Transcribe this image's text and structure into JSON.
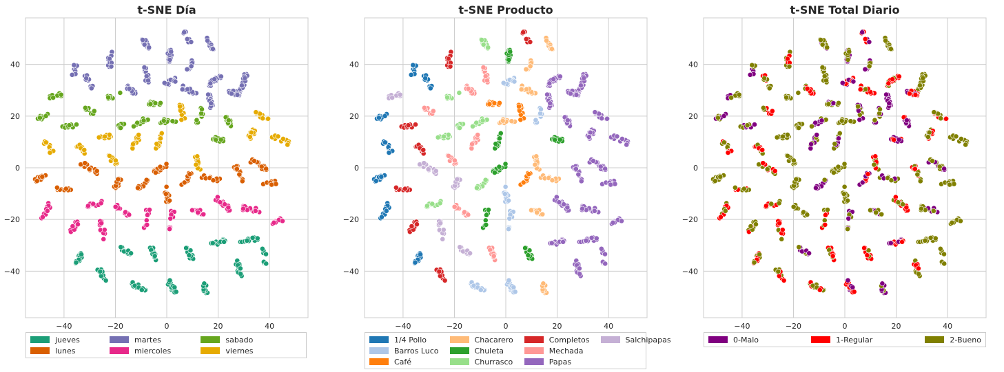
{
  "chart_data": [
    {
      "type": "scatter",
      "title": "t-SNE Día",
      "xlim": [
        -55,
        55
      ],
      "ylim": [
        -58,
        58
      ],
      "xticks": [
        -40,
        -20,
        0,
        20,
        40
      ],
      "yticks": [
        -40,
        -20,
        0,
        20,
        40
      ],
      "tick_labels_x": [
        "−40",
        "−20",
        "0",
        "20",
        "40"
      ],
      "tick_labels_y": [
        "−40",
        "−20",
        "0",
        "20",
        "40"
      ],
      "grid": true,
      "legend": "below",
      "series": [
        {
          "name": "jueves",
          "color": "#1b9e77"
        },
        {
          "name": "lunes",
          "color": "#d95f02"
        },
        {
          "name": "martes",
          "color": "#7570b3"
        },
        {
          "name": "miercoles",
          "color": "#e7298a"
        },
        {
          "name": "sabado",
          "color": "#66a61e"
        },
        {
          "name": "viernes",
          "color": "#e6ab02"
        }
      ]
    },
    {
      "type": "scatter",
      "title": "t-SNE Producto",
      "xlim": [
        -55,
        55
      ],
      "ylim": [
        -58,
        58
      ],
      "xticks": [
        -40,
        -20,
        0,
        20,
        40
      ],
      "yticks": [
        -40,
        -20,
        0,
        20,
        40
      ],
      "tick_labels_x": [
        "−40",
        "−20",
        "0",
        "20",
        "40"
      ],
      "tick_labels_y": [
        "−40",
        "−20",
        "0",
        "20",
        "40"
      ],
      "grid": true,
      "legend": "below",
      "series": [
        {
          "name": "1/4 Pollo",
          "color": "#1f77b4"
        },
        {
          "name": "Barros Luco",
          "color": "#aec7e8"
        },
        {
          "name": "Café",
          "color": "#ff7f0e"
        },
        {
          "name": "Chacarero",
          "color": "#ffbb78"
        },
        {
          "name": "Chuleta",
          "color": "#2ca02c"
        },
        {
          "name": "Churrasco",
          "color": "#98df8a"
        },
        {
          "name": "Completos",
          "color": "#d62728"
        },
        {
          "name": "Mechada",
          "color": "#ff9896"
        },
        {
          "name": "Papas",
          "color": "#9467bd"
        },
        {
          "name": "Salchipapas",
          "color": "#c5b0d5"
        }
      ]
    },
    {
      "type": "scatter",
      "title": "t-SNE Total Diario",
      "xlim": [
        -55,
        55
      ],
      "ylim": [
        -58,
        58
      ],
      "xticks": [
        -40,
        -20,
        0,
        20,
        40
      ],
      "yticks": [
        -40,
        -20,
        0,
        20,
        40
      ],
      "tick_labels_x": [
        "−40",
        "−20",
        "0",
        "20",
        "40"
      ],
      "tick_labels_y": [
        "−40",
        "−20",
        "0",
        "20",
        "40"
      ],
      "grid": true,
      "legend": "below",
      "series": [
        {
          "name": "0-Malo",
          "color": "#800080"
        },
        {
          "name": "1-Regular",
          "color": "#ff0000"
        },
        {
          "name": "2-Bueno",
          "color": "#808000"
        }
      ]
    }
  ],
  "clusters": [
    {
      "cx": -8,
      "cy": 48,
      "n": 14,
      "day": "martes",
      "prod": "Churrasco",
      "total": [
        "2-Bueno",
        "0-Malo"
      ]
    },
    {
      "cx": 1,
      "cy": 44,
      "n": 14,
      "day": "martes",
      "prod": "Chuleta",
      "total": [
        "0-Malo",
        "2-Bueno"
      ]
    },
    {
      "cx": 8,
      "cy": 51,
      "n": 10,
      "day": "martes",
      "prod": "Completos",
      "total": [
        "1-Regular",
        "0-Malo"
      ]
    },
    {
      "cx": 17,
      "cy": 47,
      "n": 10,
      "day": "martes",
      "prod": "Chacarero",
      "total": [
        "2-Bueno"
      ]
    },
    {
      "cx": -22,
      "cy": 42,
      "n": 14,
      "day": "martes",
      "prod": "Completos",
      "total": [
        "2-Bueno",
        "1-Regular"
      ]
    },
    {
      "cx": -36,
      "cy": 37,
      "n": 10,
      "day": "martes",
      "prod": "1/4 Pollo",
      "total": [
        "2-Bueno",
        "0-Malo"
      ]
    },
    {
      "cx": -30,
      "cy": 33,
      "n": 10,
      "day": "martes",
      "prod": "1/4 Pollo",
      "total": [
        "1-Regular",
        "2-Bueno"
      ]
    },
    {
      "cx": -14,
      "cy": 30,
      "n": 14,
      "day": "martes",
      "prod": "Mechada",
      "total": [
        "2-Bueno",
        "1-Regular"
      ]
    },
    {
      "cx": -8,
      "cy": 36,
      "n": 14,
      "day": "martes",
      "prod": "Mechada",
      "total": [
        "2-Bueno"
      ]
    },
    {
      "cx": 9,
      "cy": 40,
      "n": 10,
      "day": "martes",
      "prod": "Chacarero",
      "total": [
        "2-Bueno",
        "0-Malo"
      ]
    },
    {
      "cx": 19,
      "cy": 34,
      "n": 16,
      "day": "martes",
      "prod": "Papas",
      "total": [
        "1-Regular",
        "2-Bueno"
      ]
    },
    {
      "cx": 30,
      "cy": 33,
      "n": 18,
      "day": "martes",
      "prod": "Papas",
      "total": [
        "2-Bueno"
      ]
    },
    {
      "cx": 26,
      "cy": 29,
      "n": 18,
      "day": "martes",
      "prod": "Papas",
      "total": [
        "1-Regular",
        "0-Malo"
      ]
    },
    {
      "cx": 17,
      "cy": 26,
      "n": 14,
      "day": "martes",
      "prod": "Papas",
      "total": [
        "0-Malo"
      ]
    },
    {
      "cx": 9,
      "cy": 30,
      "n": 12,
      "day": "martes",
      "prod": "Chacarero",
      "total": [
        "2-Bueno",
        "1-Regular"
      ]
    },
    {
      "cx": 1,
      "cy": 33,
      "n": 12,
      "day": "martes",
      "prod": "Barros Luco",
      "total": [
        "1-Regular",
        "0-Malo"
      ]
    },
    {
      "cx": 6,
      "cy": 22,
      "n": 12,
      "day": "viernes",
      "prod": "Café",
      "total": [
        "2-Bueno",
        "0-Malo"
      ]
    },
    {
      "cx": -5,
      "cy": 25,
      "n": 12,
      "day": "sabado",
      "prod": "Café",
      "total": [
        "0-Malo",
        "2-Bueno"
      ]
    },
    {
      "cx": -20,
      "cy": 28,
      "n": 8,
      "day": "sabado",
      "prod": "Churrasco",
      "total": [
        "2-Bueno"
      ]
    },
    {
      "cx": -43,
      "cy": 28,
      "n": 10,
      "day": "sabado",
      "prod": "Salchipapas",
      "total": [
        "0-Malo",
        "2-Bueno"
      ]
    },
    {
      "cx": -48,
      "cy": 20,
      "n": 12,
      "day": "sabado",
      "prod": "1/4 Pollo",
      "total": [
        "2-Bueno",
        "0-Malo"
      ]
    },
    {
      "cx": -30,
      "cy": 22,
      "n": 10,
      "day": "sabado",
      "prod": "Mechada",
      "total": [
        "2-Bueno",
        "1-Regular"
      ]
    },
    {
      "cx": -10,
      "cy": 18,
      "n": 10,
      "day": "sabado",
      "prod": "Churrasco",
      "total": [
        "0-Malo",
        "2-Bueno"
      ]
    },
    {
      "cx": 1,
      "cy": 18,
      "n": 10,
      "day": "sabado",
      "prod": "Chacarero",
      "total": [
        "2-Bueno"
      ]
    },
    {
      "cx": 13,
      "cy": 20,
      "n": 12,
      "day": "sabado",
      "prod": "Barros Luco",
      "total": [
        "2-Bueno",
        "0-Malo"
      ]
    },
    {
      "cx": 24,
      "cy": 18,
      "n": 12,
      "day": "sabado",
      "prod": "Papas",
      "total": [
        "1-Regular",
        "0-Malo"
      ]
    },
    {
      "cx": 37,
      "cy": 20,
      "n": 14,
      "day": "viernes",
      "prod": "Papas",
      "total": [
        "2-Bueno",
        "1-Regular"
      ]
    },
    {
      "cx": -38,
      "cy": 16,
      "n": 12,
      "day": "sabado",
      "prod": "Completos",
      "total": [
        "2-Bueno",
        "0-Malo"
      ]
    },
    {
      "cx": -18,
      "cy": 16,
      "n": 10,
      "day": "sabado",
      "prod": "Churrasco",
      "total": [
        "2-Bueno"
      ]
    },
    {
      "cx": 20,
      "cy": 11,
      "n": 16,
      "day": "sabado",
      "prod": "Chuleta",
      "total": [
        "1-Regular",
        "0-Malo"
      ]
    },
    {
      "cx": 33,
      "cy": 13,
      "n": 16,
      "day": "viernes",
      "prod": "Papas",
      "total": [
        "2-Bueno",
        "1-Regular"
      ]
    },
    {
      "cx": 44,
      "cy": 11,
      "n": 14,
      "day": "viernes",
      "prod": "Papas",
      "total": [
        "2-Bueno"
      ]
    },
    {
      "cx": -46,
      "cy": 8,
      "n": 12,
      "day": "viernes",
      "prod": "1/4 Pollo",
      "total": [
        "2-Bueno",
        "1-Regular"
      ]
    },
    {
      "cx": -33,
      "cy": 7,
      "n": 14,
      "day": "viernes",
      "prod": "Completos",
      "total": [
        "2-Bueno",
        "1-Regular"
      ]
    },
    {
      "cx": -24,
      "cy": 12,
      "n": 12,
      "day": "viernes",
      "prod": "Churrasco",
      "total": [
        "2-Bueno"
      ]
    },
    {
      "cx": -12,
      "cy": 10,
      "n": 12,
      "day": "viernes",
      "prod": "Mechada",
      "total": [
        "2-Bueno",
        "0-Malo"
      ]
    },
    {
      "cx": -3,
      "cy": 10,
      "n": 10,
      "day": "viernes",
      "prod": "Chuleta",
      "total": [
        "0-Malo",
        "2-Bueno"
      ]
    },
    {
      "cx": 12,
      "cy": 2,
      "n": 12,
      "day": "viernes",
      "prod": "Chacarero",
      "total": [
        "2-Bueno",
        "1-Regular"
      ]
    },
    {
      "cx": -21,
      "cy": 3,
      "n": 12,
      "day": "viernes",
      "prod": "Mechada",
      "total": [
        "2-Bueno"
      ]
    },
    {
      "cx": -2,
      "cy": 0,
      "n": 14,
      "day": "lunes",
      "prod": "Chuleta",
      "total": [
        "2-Bueno"
      ]
    },
    {
      "cx": -49,
      "cy": -4,
      "n": 12,
      "day": "lunes",
      "prod": "1/4 Pollo",
      "total": [
        "2-Bueno"
      ]
    },
    {
      "cx": -30,
      "cy": 0,
      "n": 14,
      "day": "lunes",
      "prod": "Salchipapas",
      "total": [
        "2-Bueno",
        "1-Regular"
      ]
    },
    {
      "cx": -19,
      "cy": -6,
      "n": 12,
      "day": "lunes",
      "prod": "Salchipapas",
      "total": [
        "2-Bueno"
      ]
    },
    {
      "cx": -9,
      "cy": -6,
      "n": 12,
      "day": "lunes",
      "prod": "Churrasco",
      "total": [
        "2-Bueno",
        "0-Malo"
      ]
    },
    {
      "cx": 0,
      "cy": -10,
      "n": 10,
      "day": "lunes",
      "prod": "Barros Luco",
      "total": [
        "2-Bueno"
      ]
    },
    {
      "cx": 8,
      "cy": -4,
      "n": 12,
      "day": "lunes",
      "prod": "Café",
      "total": [
        "1-Regular",
        "0-Malo"
      ]
    },
    {
      "cx": 17,
      "cy": -4,
      "n": 12,
      "day": "lunes",
      "prod": "Chacarero",
      "total": [
        "0-Malo",
        "2-Bueno"
      ]
    },
    {
      "cx": 28,
      "cy": -2,
      "n": 18,
      "day": "lunes",
      "prod": "Papas",
      "total": [
        "2-Bueno",
        "1-Regular"
      ]
    },
    {
      "cx": 36,
      "cy": 1,
      "n": 16,
      "day": "lunes",
      "prod": "Papas",
      "total": [
        "2-Bueno",
        "0-Malo"
      ]
    },
    {
      "cx": 40,
      "cy": -6,
      "n": 14,
      "day": "lunes",
      "prod": "Papas",
      "total": [
        "2-Bueno"
      ]
    },
    {
      "cx": -40,
      "cy": -8,
      "n": 12,
      "day": "lunes",
      "prod": "Completos",
      "total": [
        "2-Bueno",
        "1-Regular"
      ]
    },
    {
      "cx": -47,
      "cy": -17,
      "n": 12,
      "day": "miercoles",
      "prod": "1/4 Pollo",
      "total": [
        "2-Bueno",
        "1-Regular"
      ]
    },
    {
      "cx": -28,
      "cy": -14,
      "n": 12,
      "day": "miercoles",
      "prod": "Churrasco",
      "total": [
        "1-Regular",
        "2-Bueno"
      ]
    },
    {
      "cx": -18,
      "cy": -16,
      "n": 12,
      "day": "miercoles",
      "prod": "Mechada",
      "total": [
        "2-Bueno"
      ]
    },
    {
      "cx": -8,
      "cy": -20,
      "n": 12,
      "day": "miercoles",
      "prod": "Chuleta",
      "total": [
        "2-Bueno",
        "1-Regular"
      ]
    },
    {
      "cx": 2,
      "cy": -20,
      "n": 10,
      "day": "miercoles",
      "prod": "Barros Luco",
      "total": [
        "0-Malo",
        "2-Bueno"
      ]
    },
    {
      "cx": 12,
      "cy": -17,
      "n": 12,
      "day": "miercoles",
      "prod": "Chacarero",
      "total": [
        "2-Bueno",
        "0-Malo"
      ]
    },
    {
      "cx": 22,
      "cy": -14,
      "n": 16,
      "day": "miercoles",
      "prod": "Papas",
      "total": [
        "1-Regular",
        "2-Bueno"
      ]
    },
    {
      "cx": 33,
      "cy": -16,
      "n": 16,
      "day": "miercoles",
      "prod": "Papas",
      "total": [
        "2-Bueno",
        "0-Malo"
      ]
    },
    {
      "cx": 43,
      "cy": -21,
      "n": 10,
      "day": "miercoles",
      "prod": "Papas",
      "total": [
        "2-Bueno"
      ]
    },
    {
      "cx": -36,
      "cy": -23,
      "n": 12,
      "day": "miercoles",
      "prod": "Completos",
      "total": [
        "2-Bueno",
        "1-Regular"
      ]
    },
    {
      "cx": -25,
      "cy": -24,
      "n": 12,
      "day": "miercoles",
      "prod": "Salchipapas",
      "total": [
        "2-Bueno",
        "1-Regular"
      ]
    },
    {
      "cx": -16,
      "cy": -32,
      "n": 12,
      "day": "jueves",
      "prod": "Salchipapas",
      "total": [
        "0-Malo",
        "2-Bueno"
      ]
    },
    {
      "cx": -34,
      "cy": -35,
      "n": 12,
      "day": "jueves",
      "prod": "1/4 Pollo",
      "total": [
        "1-Regular",
        "2-Bueno"
      ]
    },
    {
      "cx": -25,
      "cy": -42,
      "n": 12,
      "day": "jueves",
      "prod": "Completos",
      "total": [
        "2-Bueno",
        "1-Regular"
      ]
    },
    {
      "cx": -11,
      "cy": -46,
      "n": 12,
      "day": "jueves",
      "prod": "Barros Luco",
      "total": [
        "2-Bueno",
        "1-Regular"
      ]
    },
    {
      "cx": -5,
      "cy": -33,
      "n": 12,
      "day": "jueves",
      "prod": "Mechada",
      "total": [
        "2-Bueno",
        "1-Regular"
      ]
    },
    {
      "cx": 2,
      "cy": -46,
      "n": 14,
      "day": "jueves",
      "prod": "Barros Luco",
      "total": [
        "1-Regular",
        "0-Malo"
      ]
    },
    {
      "cx": 9,
      "cy": -33,
      "n": 12,
      "day": "jueves",
      "prod": "Chuleta",
      "total": [
        "2-Bueno",
        "1-Regular"
      ]
    },
    {
      "cx": 15,
      "cy": -46,
      "n": 12,
      "day": "jueves",
      "prod": "Chacarero",
      "total": [
        "2-Bueno",
        "0-Malo"
      ]
    },
    {
      "cx": 20,
      "cy": -29,
      "n": 14,
      "day": "jueves",
      "prod": "Papas",
      "total": [
        "0-Malo",
        "1-Regular"
      ]
    },
    {
      "cx": 28,
      "cy": -39,
      "n": 16,
      "day": "jueves",
      "prod": "Papas",
      "total": [
        "2-Bueno",
        "1-Regular"
      ]
    },
    {
      "cx": 32,
      "cy": -28,
      "n": 16,
      "day": "jueves",
      "prod": "Papas",
      "total": [
        "2-Bueno"
      ]
    },
    {
      "cx": 38,
      "cy": -34,
      "n": 8,
      "day": "jueves",
      "prod": "Papas",
      "total": [
        "2-Bueno"
      ]
    }
  ]
}
